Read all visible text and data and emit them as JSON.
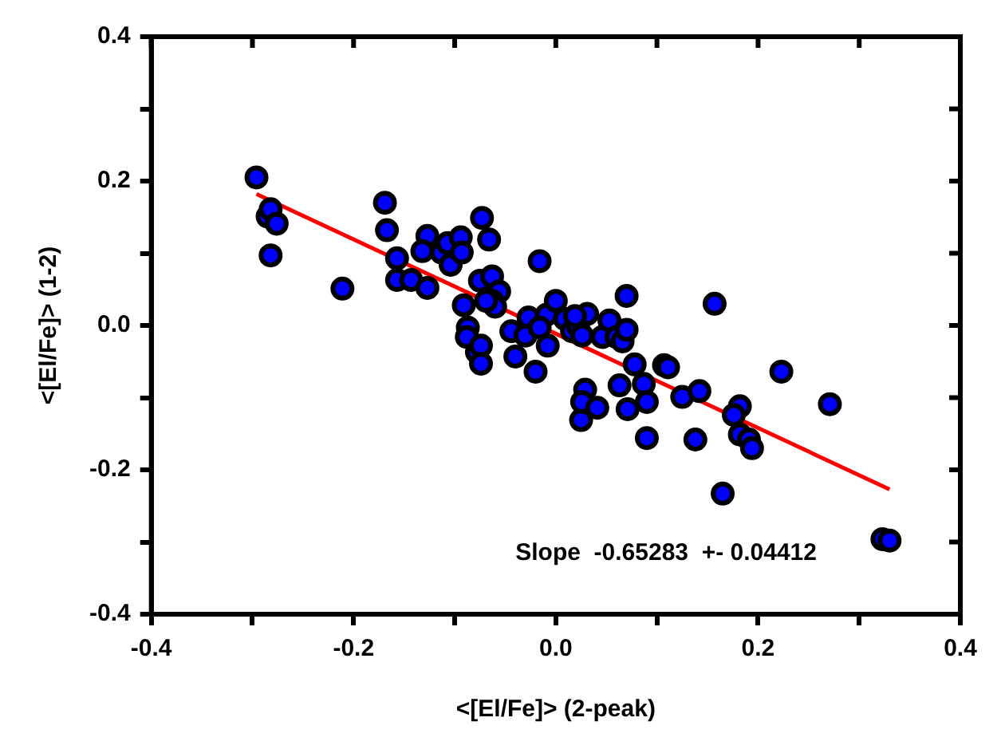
{
  "chart_data": {
    "type": "scatter",
    "xlabel": "<[El/Fe]> (2-peak)",
    "ylabel": "<[El/Fe]> (1-2)",
    "xlim": [
      -0.4,
      0.4
    ],
    "ylim": [
      -0.4,
      0.4
    ],
    "xticks": [
      -0.4,
      {
        "value": -0.3,
        "label": null
      },
      -0.2,
      {
        "value": -0.1,
        "label": null
      },
      {
        "value": 0,
        "label": "0.0"
      },
      {
        "value": 0.1,
        "label": null
      },
      0.2,
      {
        "value": 0.3,
        "label": null
      },
      0.4
    ],
    "yticks": [
      -0.4,
      {
        "value": -0.3,
        "label": null
      },
      -0.2,
      {
        "value": -0.1,
        "label": null
      },
      {
        "value": 0,
        "label": "0.0"
      },
      {
        "value": 0.1,
        "label": null
      },
      0.2,
      {
        "value": 0.3,
        "label": null
      },
      0.4
    ],
    "grid": false,
    "legend": false,
    "annotations": [
      "Slope  -0.65283  +- 0.04412"
    ],
    "series": [
      {
        "type": "scatter",
        "color": "#0000ff",
        "marker": "circle",
        "x": [
          -0.296,
          -0.285,
          -0.282,
          -0.276,
          -0.282,
          -0.211,
          -0.169,
          -0.167,
          -0.157,
          -0.157,
          -0.143,
          -0.127,
          -0.127,
          -0.132,
          -0.113,
          -0.107,
          -0.104,
          -0.094,
          -0.093,
          -0.073,
          -0.066,
          -0.091,
          -0.087,
          -0.088,
          -0.078,
          -0.074,
          -0.074,
          -0.075,
          -0.063,
          -0.056,
          -0.063,
          -0.06,
          -0.069,
          -0.044,
          -0.04,
          -0.027,
          -0.03,
          -0.02,
          -0.016,
          -0.009,
          -0.008,
          0.0,
          -0.016,
          0.009,
          0.016,
          0.022,
          0.026,
          0.031,
          0.019,
          0.025,
          0.029,
          0.026,
          0.041,
          0.046,
          0.053,
          0.06,
          0.066,
          0.07,
          0.07,
          0.063,
          0.071,
          0.078,
          0.087,
          0.09,
          0.09,
          0.107,
          0.111,
          0.125,
          0.142,
          0.138,
          0.157,
          0.165,
          0.182,
          0.176,
          0.182,
          0.191,
          0.194,
          0.223,
          0.271,
          0.323,
          0.33
        ],
        "values": [
          0.205,
          0.151,
          0.161,
          0.141,
          0.097,
          0.051,
          0.17,
          0.132,
          0.093,
          0.063,
          0.063,
          0.052,
          0.124,
          0.103,
          0.101,
          0.114,
          0.084,
          0.122,
          0.101,
          0.149,
          0.119,
          0.028,
          -0.003,
          -0.016,
          -0.037,
          -0.028,
          -0.053,
          0.062,
          0.068,
          0.047,
          0.034,
          0.026,
          0.034,
          -0.008,
          -0.043,
          0.011,
          -0.014,
          -0.064,
          0.089,
          0.015,
          -0.028,
          0.034,
          -0.003,
          0.009,
          -0.008,
          -0.001,
          -0.014,
          0.016,
          0.013,
          -0.131,
          -0.089,
          -0.106,
          -0.114,
          -0.016,
          0.007,
          -0.016,
          -0.022,
          -0.006,
          0.041,
          -0.083,
          -0.116,
          -0.054,
          -0.081,
          -0.106,
          -0.156,
          -0.055,
          -0.058,
          -0.099,
          -0.091,
          -0.158,
          0.03,
          -0.233,
          -0.112,
          -0.124,
          -0.151,
          -0.158,
          -0.17,
          -0.064,
          -0.109,
          -0.296,
          -0.298
        ]
      },
      {
        "type": "line",
        "color": "#ff0000",
        "marker": "none",
        "x": [
          -0.296,
          0.33
        ],
        "values": [
          0.182,
          -0.227
        ]
      }
    ]
  }
}
